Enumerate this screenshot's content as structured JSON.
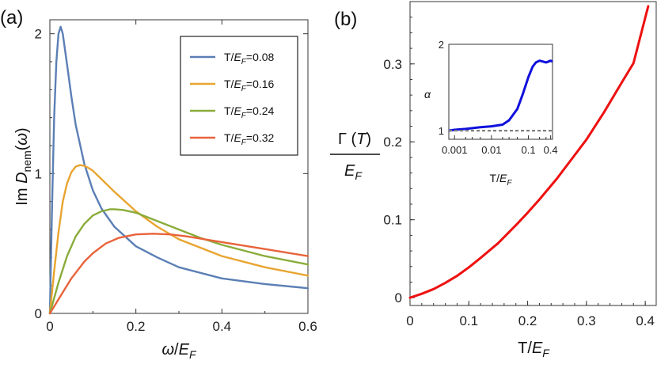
{
  "chart_data": [
    {
      "panel_label": "(a)",
      "type": "line",
      "xlabel": "ω/E_F",
      "ylabel": "Im D_nem(ω)",
      "xlim": [
        0,
        0.6
      ],
      "ylim": [
        0,
        2.1
      ],
      "xticks": [
        "0",
        "0.2",
        "0.4",
        "0.6"
      ],
      "yticks": [
        "0",
        "1",
        "2"
      ],
      "legend_position": "top-right",
      "series": [
        {
          "name": "T/E_F=0.08",
          "legend_prefix": "T/",
          "legend_var": "E",
          "legend_sub": "F",
          "legend_suffix": "=0.08",
          "color": "#5b7fb5",
          "x": [
            0,
            0.005,
            0.01,
            0.015,
            0.02,
            0.025,
            0.03,
            0.04,
            0.05,
            0.06,
            0.08,
            0.1,
            0.12,
            0.15,
            0.2,
            0.25,
            0.3,
            0.4,
            0.5,
            0.6
          ],
          "y": [
            0,
            0.75,
            1.4,
            1.8,
            2.0,
            2.05,
            2.0,
            1.78,
            1.55,
            1.35,
            1.07,
            0.88,
            0.75,
            0.62,
            0.48,
            0.4,
            0.33,
            0.25,
            0.21,
            0.18
          ]
        },
        {
          "name": "T/E_F=0.16",
          "legend_prefix": "T/",
          "legend_var": "E",
          "legend_sub": "F",
          "legend_suffix": "=0.16",
          "color": "#e8a530",
          "x": [
            0,
            0.01,
            0.02,
            0.03,
            0.04,
            0.05,
            0.06,
            0.07,
            0.08,
            0.09,
            0.1,
            0.12,
            0.15,
            0.2,
            0.25,
            0.3,
            0.4,
            0.5,
            0.6
          ],
          "y": [
            0,
            0.3,
            0.58,
            0.8,
            0.93,
            1.01,
            1.05,
            1.06,
            1.055,
            1.04,
            1.02,
            0.96,
            0.87,
            0.73,
            0.62,
            0.53,
            0.41,
            0.33,
            0.27
          ]
        },
        {
          "name": "T/E_F=0.24",
          "legend_prefix": "T/",
          "legend_var": "E",
          "legend_sub": "F",
          "legend_suffix": "=0.24",
          "color": "#8aac3a",
          "x": [
            0,
            0.02,
            0.04,
            0.06,
            0.08,
            0.1,
            0.12,
            0.14,
            0.15,
            0.17,
            0.2,
            0.25,
            0.3,
            0.35,
            0.4,
            0.5,
            0.6
          ],
          "y": [
            0,
            0.22,
            0.41,
            0.55,
            0.64,
            0.7,
            0.73,
            0.745,
            0.745,
            0.74,
            0.72,
            0.66,
            0.6,
            0.54,
            0.49,
            0.41,
            0.35
          ]
        },
        {
          "name": "T/E_F=0.32",
          "legend_prefix": "T/",
          "legend_var": "E",
          "legend_sub": "F",
          "legend_suffix": "=0.32",
          "color": "#e8633b",
          "x": [
            0,
            0.02,
            0.05,
            0.08,
            0.1,
            0.13,
            0.16,
            0.2,
            0.24,
            0.28,
            0.32,
            0.36,
            0.4,
            0.5,
            0.6
          ],
          "y": [
            0,
            0.1,
            0.25,
            0.37,
            0.43,
            0.5,
            0.54,
            0.565,
            0.57,
            0.565,
            0.55,
            0.53,
            0.51,
            0.46,
            0.41
          ]
        }
      ]
    },
    {
      "panel_label": "(b)",
      "type": "line",
      "xlabel": "T/E_F",
      "ylabel": "Γ(T)/E_F",
      "ylabel_num_prefix": "Γ (",
      "ylabel_num_var": "T",
      "ylabel_num_suffix": ")",
      "ylabel_den_var": "E",
      "ylabel_den_sub": "F",
      "xlim": [
        0,
        0.42
      ],
      "ylim": [
        -0.01,
        0.38
      ],
      "xticks": [
        "0",
        "0.1",
        "0.2",
        "0.3",
        "0.4"
      ],
      "yticks": [
        "0",
        "0.1",
        "0.2",
        "0.3"
      ],
      "series": [
        {
          "name": "Γ(T)",
          "color": "#ee1111",
          "x": [
            0,
            0.02,
            0.04,
            0.06,
            0.08,
            0.1,
            0.12,
            0.15,
            0.18,
            0.2,
            0.22,
            0.25,
            0.28,
            0.3,
            0.33,
            0.36,
            0.38,
            0.405
          ],
          "y": [
            0,
            0.005,
            0.011,
            0.019,
            0.028,
            0.039,
            0.051,
            0.07,
            0.093,
            0.109,
            0.126,
            0.153,
            0.183,
            0.203,
            0.238,
            0.276,
            0.301,
            0.374
          ]
        }
      ],
      "inset": {
        "type": "line",
        "xlabel": "T/E_F",
        "ylabel": "α",
        "xscale": "log",
        "xlim": [
          0.0007,
          0.45
        ],
        "ylim": [
          0.9,
          2.0
        ],
        "xticks": [
          "0.001",
          "0.01",
          "0.1",
          "0.4"
        ],
        "yticks": [
          "1",
          "2"
        ],
        "series": [
          {
            "name": "α",
            "color": "#1010dd",
            "x": [
              0.0007,
              0.001,
              0.002,
              0.005,
              0.01,
              0.02,
              0.03,
              0.05,
              0.07,
              0.1,
              0.13,
              0.16,
              0.2,
              0.25,
              0.3,
              0.35,
              0.4,
              0.45
            ],
            "y": [
              1.0,
              1.01,
              1.02,
              1.04,
              1.05,
              1.07,
              1.12,
              1.25,
              1.42,
              1.62,
              1.74,
              1.79,
              1.81,
              1.8,
              1.79,
              1.8,
              1.81,
              1.8
            ]
          },
          {
            "name": "reference α=1",
            "color": "#808080",
            "dashed": true,
            "x": [
              0.0007,
              0.45
            ],
            "y": [
              1.0,
              1.0
            ]
          }
        ]
      }
    }
  ]
}
